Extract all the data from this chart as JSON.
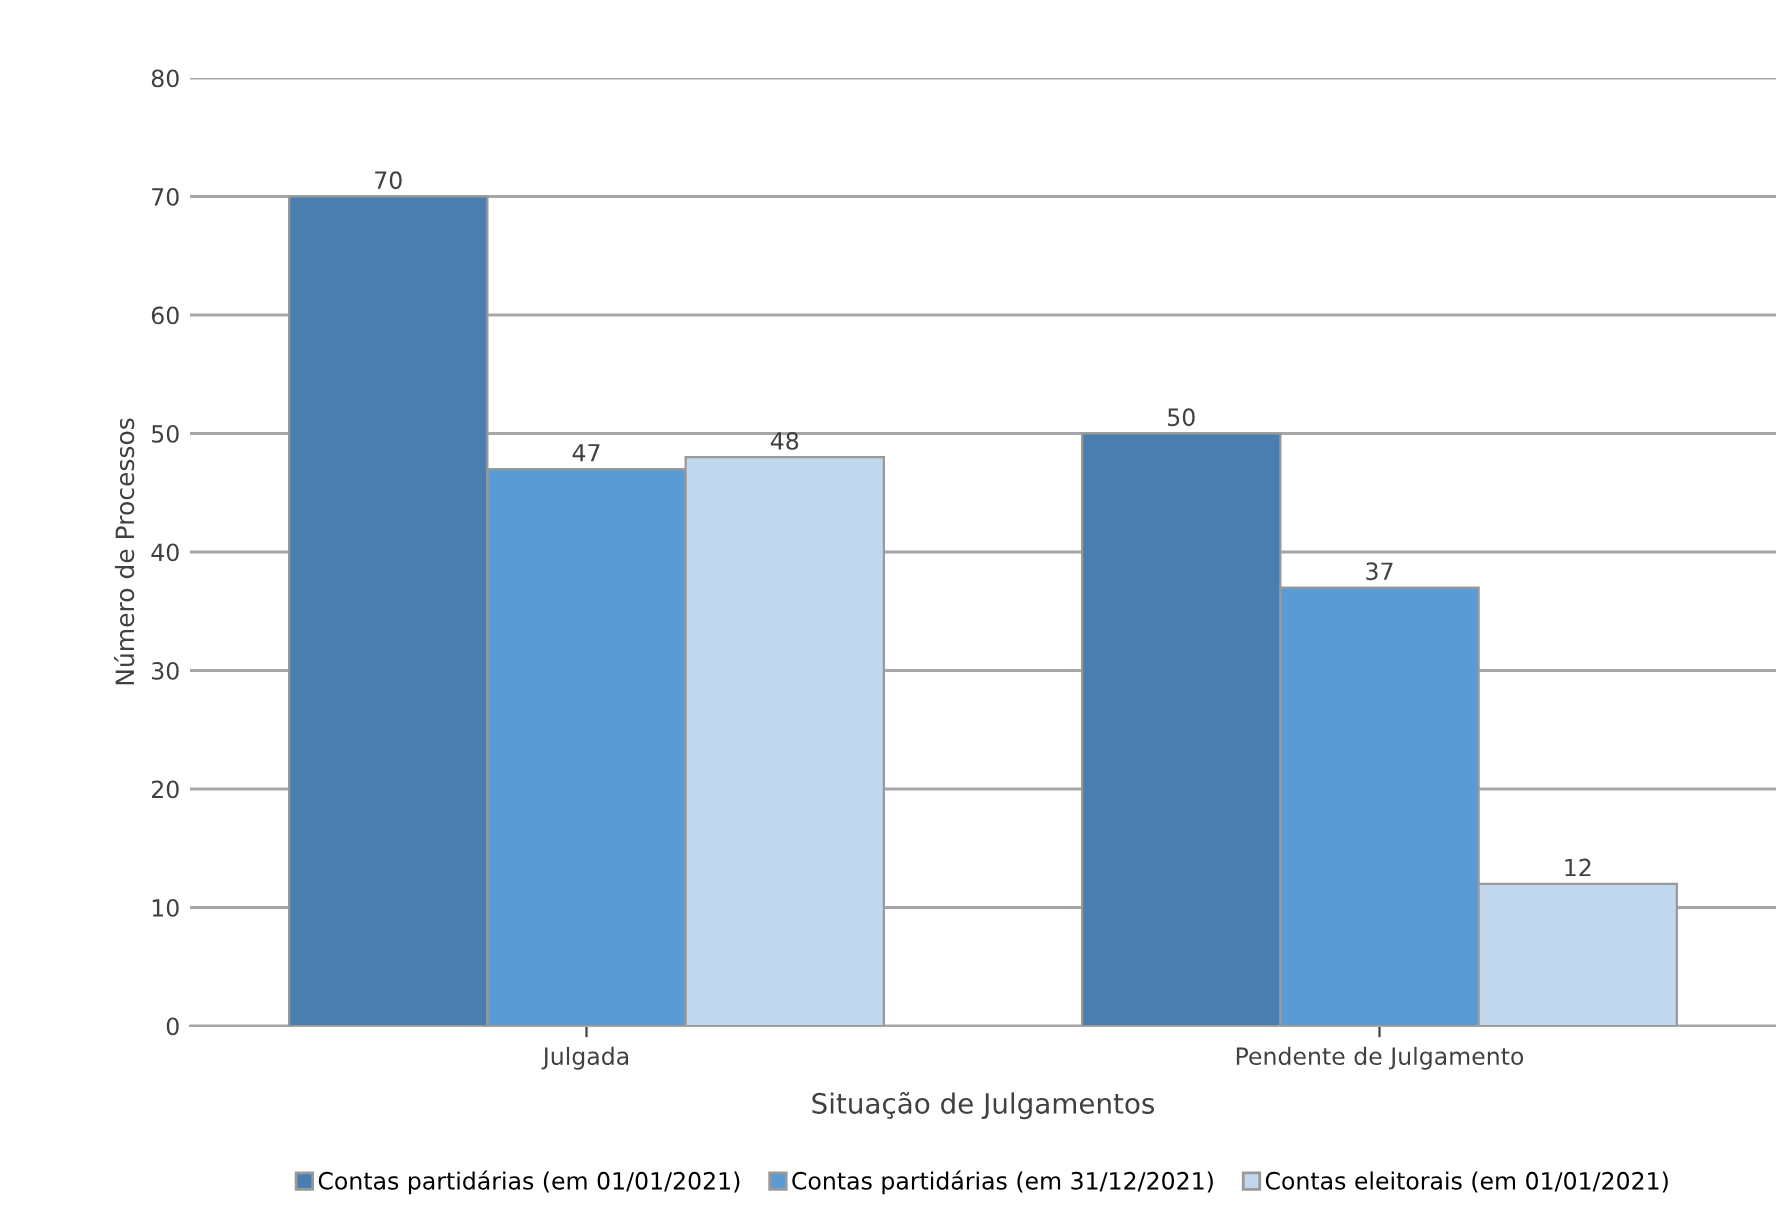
{
  "chart_data": {
    "type": "bar",
    "xlabel": "Situação de Julgamentos",
    "ylabel": "Número de Processos",
    "categories": [
      "Julgada",
      "Pendente de Julgamento"
    ],
    "series": [
      {
        "name": "Contas partidárias (em 01/01/2021)",
        "color": "#4a7eaf",
        "values": [
          70,
          50
        ]
      },
      {
        "name": "Contas partidárias (em 31/12/2021)",
        "color": "#5b9bd5",
        "values": [
          47,
          37
        ]
      },
      {
        "name": "Contas eleitorais (em 01/01/2021)",
        "color": "#c0d7ed",
        "values": [
          48,
          12
        ]
      }
    ],
    "ylim": [
      0,
      80
    ],
    "yticks": [
      0,
      10,
      20,
      30,
      40,
      50,
      60,
      70,
      80
    ],
    "grid": "y",
    "legend": "bottom",
    "data_labels": true
  }
}
